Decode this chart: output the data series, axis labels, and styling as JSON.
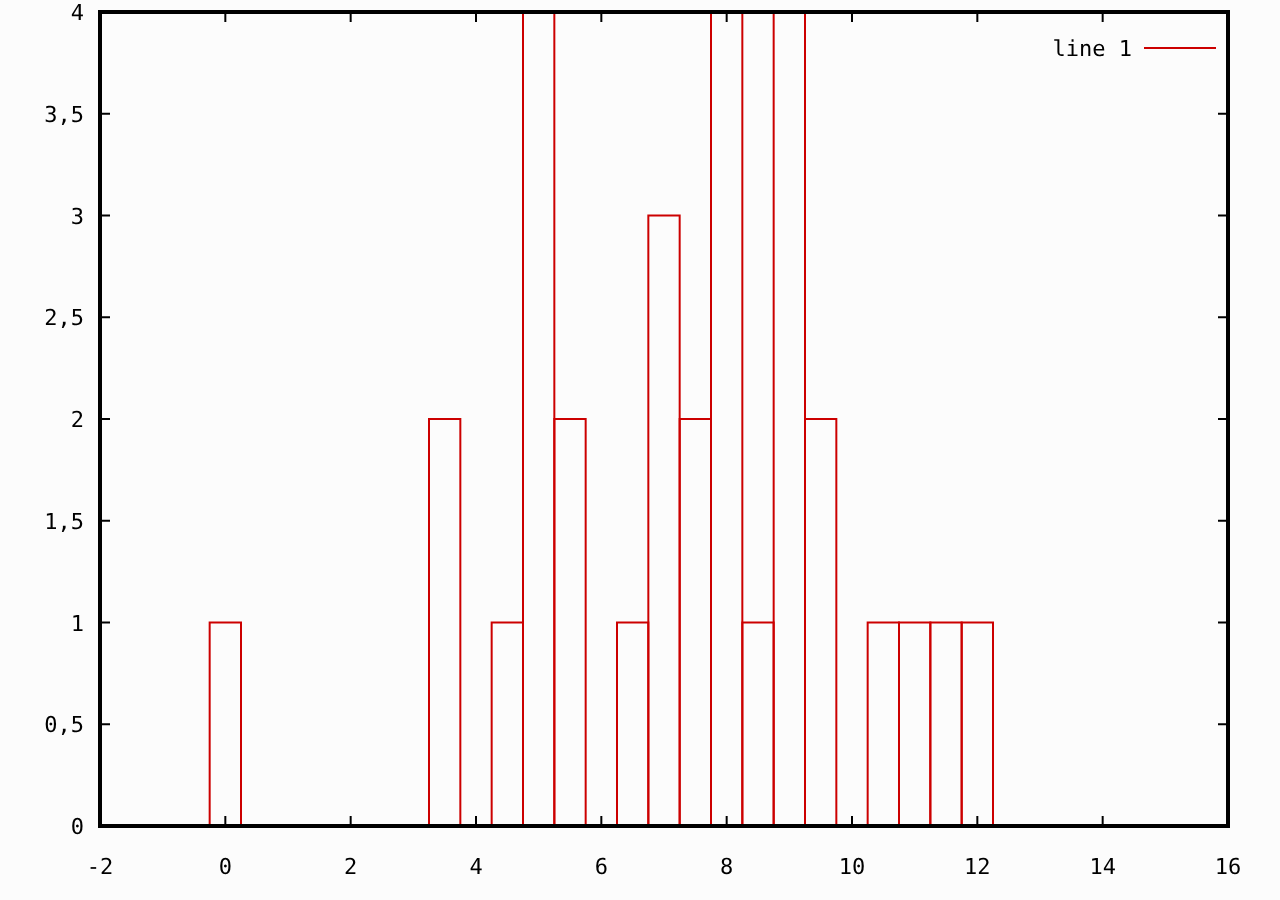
{
  "chart_data": {
    "type": "histogram",
    "bins": [
      -0.25,
      0.25,
      0.75,
      1.25,
      1.75,
      2.25,
      2.75,
      3.25,
      3.75,
      4.25,
      4.75,
      5.25,
      5.75,
      6.25,
      6.75,
      7.25,
      7.75,
      8.25,
      8.75,
      9.25,
      9.75,
      10.25,
      10.75,
      11.25,
      11.75,
      12.25,
      12.75,
      13.25,
      13.75,
      14.25,
      14.75,
      15.25
    ],
    "series": [
      {
        "name": "line 1",
        "color": "#cc0000",
        "values": [
          1,
          0,
          0,
          0,
          0,
          0,
          0,
          2,
          0,
          1,
          4,
          2,
          0,
          1,
          3,
          2,
          4,
          1,
          4,
          2,
          0,
          1,
          1,
          1,
          1,
          0,
          0,
          0,
          0,
          0,
          0
        ]
      }
    ],
    "xlim": [
      -2,
      16
    ],
    "xticks": [
      -2,
      0,
      2,
      4,
      6,
      8,
      10,
      12,
      14,
      16
    ],
    "ylim": [
      0,
      4
    ],
    "yticks": [
      0,
      {
        "value": 0.5,
        "label": "0,5"
      },
      1,
      {
        "value": 1.5,
        "label": "1,5"
      },
      2,
      {
        "value": 2.5,
        "label": "2,5"
      },
      3,
      {
        "value": 3.5,
        "label": "3,5"
      },
      4
    ],
    "legend": "top right",
    "grid": false
  }
}
